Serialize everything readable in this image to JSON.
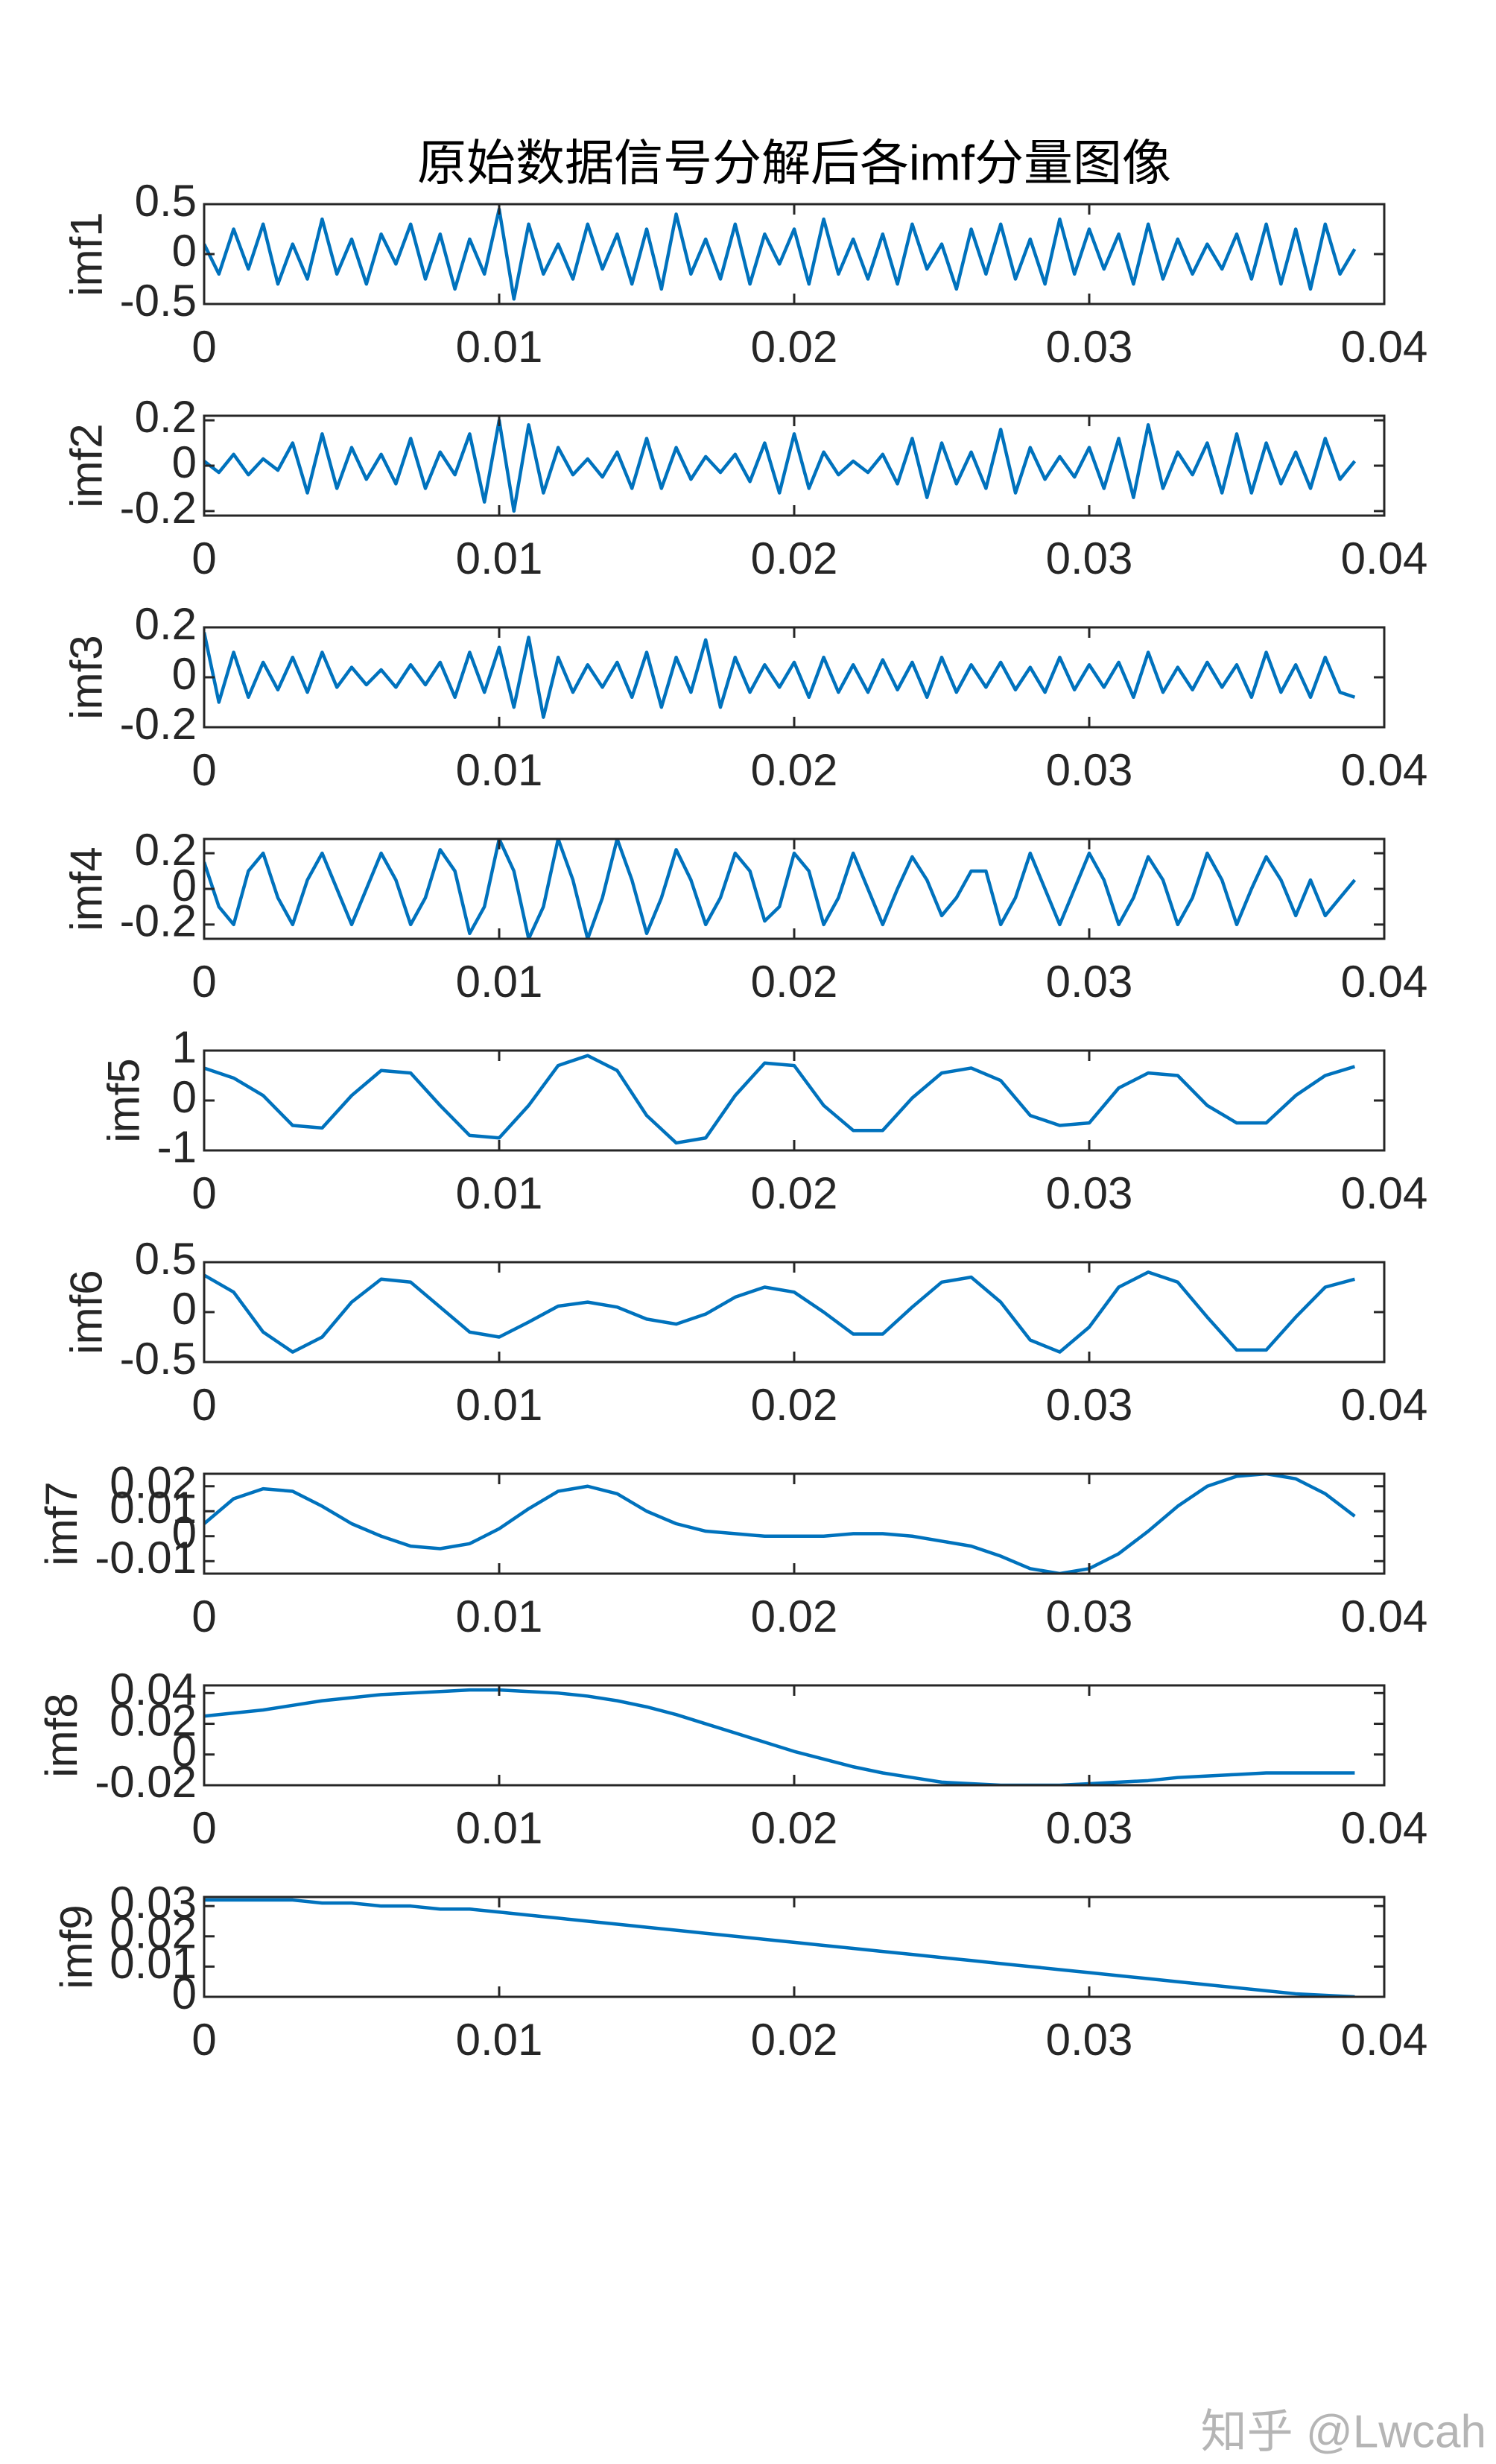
{
  "chart_data": [
    {
      "type": "line",
      "title": "原始数据信号分解后各imf分量图像",
      "ylabel": "imf1",
      "color": "#0072bd",
      "x": [
        0,
        0.0005,
        0.001,
        0.0015,
        0.002,
        0.0025,
        0.003,
        0.0035,
        0.004,
        0.0045,
        0.005,
        0.0055,
        0.006,
        0.0065,
        0.007,
        0.0075,
        0.008,
        0.0085,
        0.009,
        0.0095,
        0.01,
        0.0105,
        0.011,
        0.0115,
        0.012,
        0.0125,
        0.013,
        0.0135,
        0.014,
        0.0145,
        0.015,
        0.0155,
        0.016,
        0.0165,
        0.017,
        0.0175,
        0.018,
        0.0185,
        0.019,
        0.0195,
        0.02,
        0.0205,
        0.021,
        0.0215,
        0.022,
        0.0225,
        0.023,
        0.0235,
        0.024,
        0.0245,
        0.025,
        0.0255,
        0.026,
        0.0265,
        0.027,
        0.0275,
        0.028,
        0.0285,
        0.029,
        0.0295,
        0.03,
        0.0305,
        0.031,
        0.0315,
        0.032,
        0.0325,
        0.033,
        0.0335,
        0.034,
        0.0345,
        0.035,
        0.0355,
        0.036,
        0.0365,
        0.037,
        0.0375,
        0.038,
        0.0385,
        0.039
      ],
      "values": [
        0.1,
        -0.2,
        0.25,
        -0.15,
        0.3,
        -0.3,
        0.1,
        -0.25,
        0.35,
        -0.2,
        0.15,
        -0.3,
        0.2,
        -0.1,
        0.3,
        -0.25,
        0.2,
        -0.35,
        0.15,
        -0.2,
        0.45,
        -0.45,
        0.3,
        -0.2,
        0.1,
        -0.25,
        0.3,
        -0.15,
        0.2,
        -0.3,
        0.25,
        -0.35,
        0.4,
        -0.2,
        0.15,
        -0.25,
        0.3,
        -0.3,
        0.2,
        -0.1,
        0.25,
        -0.3,
        0.35,
        -0.2,
        0.15,
        -0.25,
        0.2,
        -0.3,
        0.3,
        -0.15,
        0.1,
        -0.35,
        0.25,
        -0.2,
        0.3,
        -0.25,
        0.15,
        -0.3,
        0.35,
        -0.2,
        0.25,
        -0.15,
        0.2,
        -0.3,
        0.3,
        -0.25,
        0.15,
        -0.2,
        0.1,
        -0.15,
        0.2,
        -0.25,
        0.3,
        -0.3,
        0.25,
        -0.35,
        0.3,
        -0.2,
        0.05
      ],
      "xlim": [
        0,
        0.04
      ],
      "xticks": [
        0,
        0.01,
        0.02,
        0.03,
        0.04
      ],
      "ylim": [
        -0.5,
        0.5
      ],
      "yticks": [
        -0.5,
        0,
        0.5
      ]
    },
    {
      "type": "line",
      "ylabel": "imf2",
      "color": "#0072bd",
      "x": [
        0,
        0.0005,
        0.001,
        0.0015,
        0.002,
        0.0025,
        0.003,
        0.0035,
        0.004,
        0.0045,
        0.005,
        0.0055,
        0.006,
        0.0065,
        0.007,
        0.0075,
        0.008,
        0.0085,
        0.009,
        0.0095,
        0.01,
        0.0105,
        0.011,
        0.0115,
        0.012,
        0.0125,
        0.013,
        0.0135,
        0.014,
        0.0145,
        0.015,
        0.0155,
        0.016,
        0.0165,
        0.017,
        0.0175,
        0.018,
        0.0185,
        0.019,
        0.0195,
        0.02,
        0.0205,
        0.021,
        0.0215,
        0.022,
        0.0225,
        0.023,
        0.0235,
        0.024,
        0.0245,
        0.025,
        0.0255,
        0.026,
        0.0265,
        0.027,
        0.0275,
        0.028,
        0.0285,
        0.029,
        0.0295,
        0.03,
        0.0305,
        0.031,
        0.0315,
        0.032,
        0.0325,
        0.033,
        0.0335,
        0.034,
        0.0345,
        0.035,
        0.0355,
        0.036,
        0.0365,
        0.037,
        0.0375,
        0.038,
        0.0385,
        0.039
      ],
      "values": [
        0.02,
        -0.03,
        0.05,
        -0.04,
        0.03,
        -0.02,
        0.1,
        -0.12,
        0.14,
        -0.1,
        0.08,
        -0.06,
        0.05,
        -0.08,
        0.12,
        -0.1,
        0.06,
        -0.04,
        0.14,
        -0.16,
        0.2,
        -0.2,
        0.18,
        -0.12,
        0.08,
        -0.04,
        0.03,
        -0.05,
        0.06,
        -0.1,
        0.12,
        -0.1,
        0.08,
        -0.06,
        0.04,
        -0.03,
        0.05,
        -0.07,
        0.1,
        -0.12,
        0.14,
        -0.1,
        0.06,
        -0.04,
        0.02,
        -0.03,
        0.05,
        -0.08,
        0.12,
        -0.14,
        0.1,
        -0.08,
        0.06,
        -0.1,
        0.16,
        -0.12,
        0.08,
        -0.06,
        0.04,
        -0.05,
        0.08,
        -0.1,
        0.12,
        -0.14,
        0.18,
        -0.1,
        0.06,
        -0.04,
        0.1,
        -0.12,
        0.14,
        -0.12,
        0.1,
        -0.08,
        0.06,
        -0.1,
        0.12,
        -0.06,
        0.02
      ],
      "xlim": [
        0,
        0.04
      ],
      "xticks": [
        0,
        0.01,
        0.02,
        0.03,
        0.04
      ],
      "ylim": [
        -0.22,
        0.22
      ],
      "yticks": [
        -0.2,
        0,
        0.2
      ]
    },
    {
      "type": "line",
      "ylabel": "imf3",
      "color": "#0072bd",
      "x": [
        0,
        0.0005,
        0.001,
        0.0015,
        0.002,
        0.0025,
        0.003,
        0.0035,
        0.004,
        0.0045,
        0.005,
        0.0055,
        0.006,
        0.0065,
        0.007,
        0.0075,
        0.008,
        0.0085,
        0.009,
        0.0095,
        0.01,
        0.0105,
        0.011,
        0.0115,
        0.012,
        0.0125,
        0.013,
        0.0135,
        0.014,
        0.0145,
        0.015,
        0.0155,
        0.016,
        0.0165,
        0.017,
        0.0175,
        0.018,
        0.0185,
        0.019,
        0.0195,
        0.02,
        0.0205,
        0.021,
        0.0215,
        0.022,
        0.0225,
        0.023,
        0.0235,
        0.024,
        0.0245,
        0.025,
        0.0255,
        0.026,
        0.0265,
        0.027,
        0.0275,
        0.028,
        0.0285,
        0.029,
        0.0295,
        0.03,
        0.0305,
        0.031,
        0.0315,
        0.032,
        0.0325,
        0.033,
        0.0335,
        0.034,
        0.0345,
        0.035,
        0.0355,
        0.036,
        0.0365,
        0.037,
        0.0375,
        0.038,
        0.0385,
        0.039
      ],
      "values": [
        0.18,
        -0.1,
        0.1,
        -0.08,
        0.06,
        -0.05,
        0.08,
        -0.06,
        0.1,
        -0.04,
        0.04,
        -0.03,
        0.03,
        -0.04,
        0.05,
        -0.03,
        0.06,
        -0.08,
        0.1,
        -0.06,
        0.12,
        -0.12,
        0.16,
        -0.16,
        0.08,
        -0.06,
        0.05,
        -0.04,
        0.06,
        -0.08,
        0.1,
        -0.12,
        0.08,
        -0.06,
        0.15,
        -0.12,
        0.08,
        -0.06,
        0.05,
        -0.04,
        0.06,
        -0.08,
        0.08,
        -0.06,
        0.05,
        -0.06,
        0.07,
        -0.05,
        0.06,
        -0.08,
        0.08,
        -0.06,
        0.05,
        -0.04,
        0.06,
        -0.05,
        0.04,
        -0.06,
        0.08,
        -0.05,
        0.05,
        -0.04,
        0.06,
        -0.08,
        0.1,
        -0.06,
        0.04,
        -0.05,
        0.06,
        -0.04,
        0.05,
        -0.08,
        0.1,
        -0.06,
        0.05,
        -0.08,
        0.08,
        -0.06,
        -0.08
      ],
      "xlim": [
        0,
        0.04
      ],
      "xticks": [
        0,
        0.01,
        0.02,
        0.03,
        0.04
      ],
      "ylim": [
        -0.2,
        0.2
      ],
      "yticks": [
        -0.2,
        0,
        0.2
      ]
    },
    {
      "type": "line",
      "ylabel": "imf4",
      "color": "#0072bd",
      "x": [
        0,
        0.0005,
        0.001,
        0.0015,
        0.002,
        0.0025,
        0.003,
        0.0035,
        0.004,
        0.0045,
        0.005,
        0.0055,
        0.006,
        0.0065,
        0.007,
        0.0075,
        0.008,
        0.0085,
        0.009,
        0.0095,
        0.01,
        0.0105,
        0.011,
        0.0115,
        0.012,
        0.0125,
        0.013,
        0.0135,
        0.014,
        0.0145,
        0.015,
        0.0155,
        0.016,
        0.0165,
        0.017,
        0.0175,
        0.018,
        0.0185,
        0.019,
        0.0195,
        0.02,
        0.0205,
        0.021,
        0.0215,
        0.022,
        0.0225,
        0.023,
        0.0235,
        0.024,
        0.0245,
        0.025,
        0.0255,
        0.026,
        0.0265,
        0.027,
        0.0275,
        0.028,
        0.0285,
        0.029,
        0.0295,
        0.03,
        0.0305,
        0.031,
        0.0315,
        0.032,
        0.0325,
        0.033,
        0.0335,
        0.034,
        0.0345,
        0.035,
        0.0355,
        0.036,
        0.0365,
        0.037,
        0.0375,
        0.038,
        0.0385,
        0.039
      ],
      "values": [
        0.15,
        -0.1,
        -0.2,
        0.1,
        0.2,
        -0.05,
        -0.2,
        0.05,
        0.2,
        0,
        -0.2,
        0,
        0.2,
        0.05,
        -0.2,
        -0.05,
        0.22,
        0.1,
        -0.25,
        -0.1,
        0.28,
        0.1,
        -0.28,
        -0.1,
        0.28,
        0.05,
        -0.28,
        -0.05,
        0.28,
        0.05,
        -0.25,
        -0.05,
        0.22,
        0.05,
        -0.2,
        -0.05,
        0.2,
        0.1,
        -0.18,
        -0.1,
        0.2,
        0.1,
        -0.2,
        -0.05,
        0.2,
        0,
        -0.2,
        0,
        0.18,
        0.05,
        -0.15,
        -0.05,
        0.1,
        0.1,
        -0.2,
        -0.05,
        0.2,
        0,
        -0.2,
        0,
        0.2,
        0.05,
        -0.2,
        -0.05,
        0.18,
        0.05,
        -0.2,
        -0.05,
        0.2,
        0.05,
        -0.2,
        0,
        0.18,
        0.05,
        -0.15,
        0.05,
        -0.15,
        -0.05,
        0.05
      ],
      "xlim": [
        0,
        0.04
      ],
      "xticks": [
        0,
        0.01,
        0.02,
        0.03,
        0.04
      ],
      "ylim": [
        -0.28,
        0.28
      ],
      "yticks": [
        -0.2,
        0,
        0.2
      ]
    },
    {
      "type": "line",
      "ylabel": "imf5",
      "color": "#0072bd",
      "x": [
        0,
        0.001,
        0.002,
        0.003,
        0.004,
        0.005,
        0.006,
        0.007,
        0.008,
        0.009,
        0.01,
        0.011,
        0.012,
        0.013,
        0.014,
        0.015,
        0.016,
        0.017,
        0.018,
        0.019,
        0.02,
        0.021,
        0.022,
        0.023,
        0.024,
        0.025,
        0.026,
        0.027,
        0.028,
        0.029,
        0.03,
        0.031,
        0.032,
        0.033,
        0.034,
        0.035,
        0.036,
        0.037,
        0.038,
        0.039
      ],
      "values": [
        0.65,
        0.45,
        0.1,
        -0.5,
        -0.55,
        0.1,
        0.6,
        0.55,
        -0.1,
        -0.7,
        -0.75,
        -0.1,
        0.7,
        0.9,
        0.6,
        -0.3,
        -0.85,
        -0.75,
        0.1,
        0.75,
        0.7,
        -0.1,
        -0.6,
        -0.6,
        0.05,
        0.55,
        0.65,
        0.4,
        -0.3,
        -0.5,
        -0.45,
        0.25,
        0.55,
        0.5,
        -0.1,
        -0.45,
        -0.45,
        0.1,
        0.5,
        0.68
      ],
      "xlim": [
        0,
        0.04
      ],
      "xticks": [
        0,
        0.01,
        0.02,
        0.03,
        0.04
      ],
      "ylim": [
        -1,
        1
      ],
      "yticks": [
        -1,
        0,
        1
      ]
    },
    {
      "type": "line",
      "ylabel": "imf6",
      "color": "#0072bd",
      "x": [
        0,
        0.001,
        0.002,
        0.003,
        0.004,
        0.005,
        0.006,
        0.007,
        0.008,
        0.009,
        0.01,
        0.011,
        0.012,
        0.013,
        0.014,
        0.015,
        0.016,
        0.017,
        0.018,
        0.019,
        0.02,
        0.021,
        0.022,
        0.023,
        0.024,
        0.025,
        0.026,
        0.027,
        0.028,
        0.029,
        0.03,
        0.031,
        0.032,
        0.033,
        0.034,
        0.035,
        0.036,
        0.037,
        0.038,
        0.039
      ],
      "values": [
        0.37,
        0.2,
        -0.2,
        -0.4,
        -0.25,
        0.1,
        0.33,
        0.3,
        0.05,
        -0.2,
        -0.25,
        -0.1,
        0.06,
        0.1,
        0.05,
        -0.07,
        -0.12,
        -0.02,
        0.15,
        0.25,
        0.2,
        0,
        -0.22,
        -0.22,
        0.05,
        0.3,
        0.35,
        0.1,
        -0.28,
        -0.4,
        -0.15,
        0.25,
        0.4,
        0.3,
        -0.05,
        -0.38,
        -0.38,
        -0.05,
        0.25,
        0.33
      ],
      "xlim": [
        0,
        0.04
      ],
      "xticks": [
        0,
        0.01,
        0.02,
        0.03,
        0.04
      ],
      "ylim": [
        -0.5,
        0.5
      ],
      "yticks": [
        -0.5,
        0,
        0.5
      ]
    },
    {
      "type": "line",
      "ylabel": "imf7",
      "color": "#0072bd",
      "x": [
        0,
        0.001,
        0.002,
        0.003,
        0.004,
        0.005,
        0.006,
        0.007,
        0.008,
        0.009,
        0.01,
        0.011,
        0.012,
        0.013,
        0.014,
        0.015,
        0.016,
        0.017,
        0.018,
        0.019,
        0.02,
        0.021,
        0.022,
        0.023,
        0.024,
        0.025,
        0.026,
        0.027,
        0.028,
        0.029,
        0.03,
        0.031,
        0.032,
        0.033,
        0.034,
        0.035,
        0.036,
        0.037,
        0.038,
        0.039
      ],
      "values": [
        0.005,
        0.015,
        0.019,
        0.018,
        0.012,
        0.005,
        0,
        -0.004,
        -0.005,
        -0.003,
        0.003,
        0.011,
        0.018,
        0.02,
        0.017,
        0.01,
        0.005,
        0.002,
        0.001,
        0,
        0,
        0,
        0.001,
        0.001,
        0,
        -0.002,
        -0.004,
        -0.008,
        -0.013,
        -0.015,
        -0.013,
        -0.007,
        0.002,
        0.012,
        0.02,
        0.024,
        0.025,
        0.023,
        0.017,
        0.008
      ],
      "xlim": [
        0,
        0.04
      ],
      "xticks": [
        0,
        0.01,
        0.02,
        0.03,
        0.04
      ],
      "ylim": [
        -0.015,
        0.025
      ],
      "yticks": [
        -0.01,
        0,
        0.01,
        0.02
      ]
    },
    {
      "type": "line",
      "ylabel": "imf8",
      "color": "#0072bd",
      "x": [
        0,
        0.001,
        0.002,
        0.003,
        0.004,
        0.005,
        0.006,
        0.007,
        0.008,
        0.009,
        0.01,
        0.011,
        0.012,
        0.013,
        0.014,
        0.015,
        0.016,
        0.017,
        0.018,
        0.019,
        0.02,
        0.021,
        0.022,
        0.023,
        0.024,
        0.025,
        0.026,
        0.027,
        0.028,
        0.029,
        0.03,
        0.031,
        0.032,
        0.033,
        0.034,
        0.035,
        0.036,
        0.037,
        0.038,
        0.039
      ],
      "values": [
        0.025,
        0.027,
        0.029,
        0.032,
        0.035,
        0.037,
        0.039,
        0.04,
        0.041,
        0.042,
        0.042,
        0.041,
        0.04,
        0.038,
        0.035,
        0.031,
        0.026,
        0.02,
        0.014,
        0.008,
        0.002,
        -0.003,
        -0.008,
        -0.012,
        -0.015,
        -0.018,
        -0.019,
        -0.02,
        -0.02,
        -0.02,
        -0.019,
        -0.018,
        -0.017,
        -0.015,
        -0.014,
        -0.013,
        -0.012,
        -0.012,
        -0.012,
        -0.012
      ],
      "xlim": [
        0,
        0.04
      ],
      "xticks": [
        0,
        0.01,
        0.02,
        0.03,
        0.04
      ],
      "ylim": [
        -0.02,
        0.045
      ],
      "yticks": [
        -0.02,
        0,
        0.02,
        0.04
      ]
    },
    {
      "type": "line",
      "ylabel": "imf9",
      "color": "#0072bd",
      "x": [
        0,
        0.001,
        0.002,
        0.003,
        0.004,
        0.005,
        0.006,
        0.007,
        0.008,
        0.009,
        0.01,
        0.011,
        0.012,
        0.013,
        0.014,
        0.015,
        0.016,
        0.017,
        0.018,
        0.019,
        0.02,
        0.021,
        0.022,
        0.023,
        0.024,
        0.025,
        0.026,
        0.027,
        0.028,
        0.029,
        0.03,
        0.031,
        0.032,
        0.033,
        0.034,
        0.035,
        0.036,
        0.037,
        0.038,
        0.039
      ],
      "values": [
        0.032,
        0.032,
        0.032,
        0.032,
        0.031,
        0.031,
        0.03,
        0.03,
        0.029,
        0.029,
        0.028,
        0.027,
        0.026,
        0.025,
        0.024,
        0.023,
        0.022,
        0.021,
        0.02,
        0.019,
        0.018,
        0.017,
        0.016,
        0.015,
        0.014,
        0.013,
        0.012,
        0.011,
        0.01,
        0.009,
        0.008,
        0.007,
        0.006,
        0.005,
        0.004,
        0.003,
        0.002,
        0.001,
        0.0005,
        0
      ],
      "xlim": [
        0,
        0.04
      ],
      "xticks": [
        0,
        0.01,
        0.02,
        0.03,
        0.04
      ],
      "ylim": [
        0,
        0.033
      ],
      "yticks": [
        0,
        0.01,
        0.02,
        0.03
      ]
    }
  ],
  "watermark": "知乎 @Lwcah"
}
